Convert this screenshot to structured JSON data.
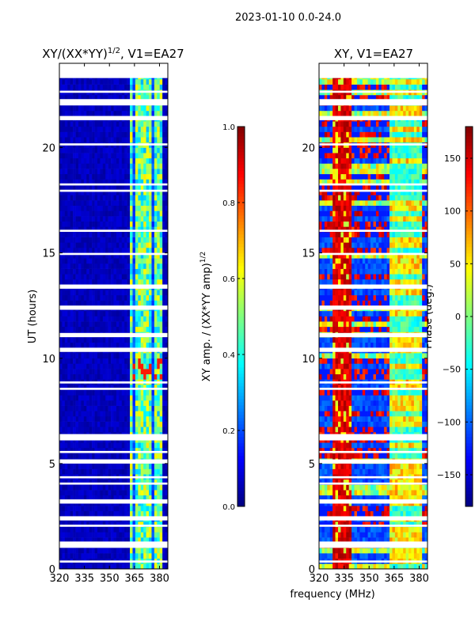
{
  "suptitle": "2023-01-10 0.0-24.0",
  "shared_xlabel": "frequency (MHz)",
  "chart_data": [
    {
      "type": "heatmap",
      "title": "XY/(XX*YY)^1/2, V1=EA27",
      "title_main": "XY/(XX*YY)",
      "title_sup": "1/2",
      "title_tail": ", V1=EA27",
      "xlabel": "frequency (MHz)",
      "ylabel": "UT (hours)",
      "xlim": [
        320,
        385
      ],
      "ylim": [
        0,
        24
      ],
      "xticks": [
        "320",
        "335",
        "350",
        "365",
        "380"
      ],
      "xtick_values": [
        320,
        335,
        350,
        365,
        380
      ],
      "yticks": [
        "0",
        "5",
        "10",
        "15",
        "20"
      ],
      "ytick_values": [
        0,
        5,
        10,
        15,
        20
      ],
      "colorbar": {
        "label_main": "XY amp. / (XX*YY amp)",
        "label_sup": "1/2",
        "range": [
          0,
          1
        ],
        "ticks": [
          "0.0",
          "0.2",
          "0.4",
          "0.6",
          "0.8",
          "1.0"
        ],
        "tick_values": [
          0,
          0.2,
          0.4,
          0.6,
          0.8,
          1.0
        ],
        "colormap": "jet"
      },
      "description_values": {
        "background_level": 0.05,
        "band_start_mhz": 362,
        "band_end_mhz": 382,
        "band_level": 0.45
      },
      "flagged_hours": [
        [
          23.3,
          24
        ],
        [
          22.6,
          22.7
        ],
        [
          22.0,
          22.3
        ],
        [
          21.3,
          21.5
        ],
        [
          20.1,
          20.2
        ],
        [
          18.2,
          18.3
        ],
        [
          17.9,
          18.0
        ],
        [
          16.0,
          16.1
        ],
        [
          14.9,
          15.0
        ],
        [
          13.3,
          13.5
        ],
        [
          12.3,
          12.5
        ],
        [
          11.0,
          11.2
        ],
        [
          10.3,
          10.5
        ],
        [
          8.8,
          8.9
        ],
        [
          8.5,
          8.6
        ],
        [
          6.1,
          6.4
        ],
        [
          5.5,
          5.6
        ],
        [
          5.0,
          5.2
        ],
        [
          4.3,
          4.4
        ],
        [
          4.0,
          4.1
        ],
        [
          3.1,
          3.3
        ],
        [
          2.3,
          2.5
        ],
        [
          2.0,
          2.1
        ],
        [
          1.0,
          1.3
        ],
        [
          0.3,
          0.4
        ]
      ]
    },
    {
      "type": "heatmap",
      "title": "XY, V1=EA27",
      "xlabel": "frequency (MHz)",
      "ylabel": "",
      "xlim": [
        320,
        385
      ],
      "ylim": [
        0,
        24
      ],
      "xticks": [
        "320",
        "335",
        "350",
        "365",
        "380"
      ],
      "xtick_values": [
        320,
        335,
        350,
        365,
        380
      ],
      "yticks": [
        "0",
        "5",
        "10",
        "15",
        "20"
      ],
      "ytick_values": [
        0,
        5,
        10,
        15,
        20
      ],
      "colorbar": {
        "label": "Phase (deg.)",
        "range": [
          -180,
          180
        ],
        "ticks": [
          "−150",
          "−100",
          "−50",
          "0",
          "50",
          "100",
          "150"
        ],
        "tick_values": [
          -150,
          -100,
          -50,
          0,
          50,
          100,
          150
        ],
        "colormap": "jet"
      },
      "description_values": {
        "red_band_mhz": [
          328,
          340
        ],
        "red_band_phase": 150,
        "band_start_mhz": 362,
        "band_end_mhz": 382
      },
      "flagged_hours": [
        [
          23.3,
          24
        ],
        [
          22.6,
          22.7
        ],
        [
          22.0,
          22.3
        ],
        [
          21.3,
          21.5
        ],
        [
          20.1,
          20.2
        ],
        [
          18.2,
          18.3
        ],
        [
          17.9,
          18.0
        ],
        [
          16.0,
          16.1
        ],
        [
          14.9,
          15.0
        ],
        [
          13.3,
          13.5
        ],
        [
          12.3,
          12.5
        ],
        [
          11.0,
          11.2
        ],
        [
          10.3,
          10.5
        ],
        [
          8.8,
          8.9
        ],
        [
          8.5,
          8.6
        ],
        [
          6.1,
          6.4
        ],
        [
          5.5,
          5.6
        ],
        [
          5.0,
          5.2
        ],
        [
          4.3,
          4.4
        ],
        [
          4.0,
          4.1
        ],
        [
          3.1,
          3.3
        ],
        [
          2.3,
          2.5
        ],
        [
          2.0,
          2.1
        ],
        [
          1.0,
          1.3
        ],
        [
          0.3,
          0.4
        ]
      ]
    }
  ]
}
